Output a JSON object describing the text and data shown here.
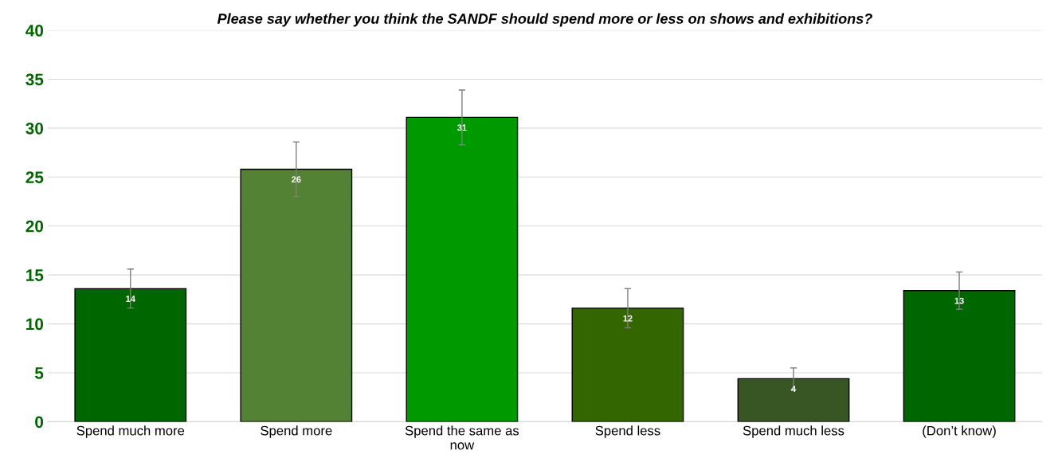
{
  "chart_data": {
    "type": "bar",
    "title": "Please say whether you think the SANDF should spend more or less on shows and exhibitions?",
    "categories": [
      "Spend much more",
      "Spend more",
      "Spend the same as now",
      "Spend less",
      "Spend much less",
      "(Don’t know)"
    ],
    "values": [
      13.6,
      25.8,
      31.1,
      11.6,
      4.4,
      13.4
    ],
    "colors": [
      "#006600",
      "#548235",
      "#009900",
      "#336600",
      "#375623",
      "#006600"
    ],
    "errors": [
      2.0,
      2.8,
      2.8,
      2.0,
      1.1,
      1.9
    ],
    "value_labels": [
      "14",
      "26",
      "31",
      "12",
      "4",
      "13"
    ],
    "ylim": [
      0,
      40
    ],
    "yticks": [
      0,
      5,
      10,
      15,
      20,
      25,
      30,
      35,
      40
    ],
    "grid": "y"
  }
}
